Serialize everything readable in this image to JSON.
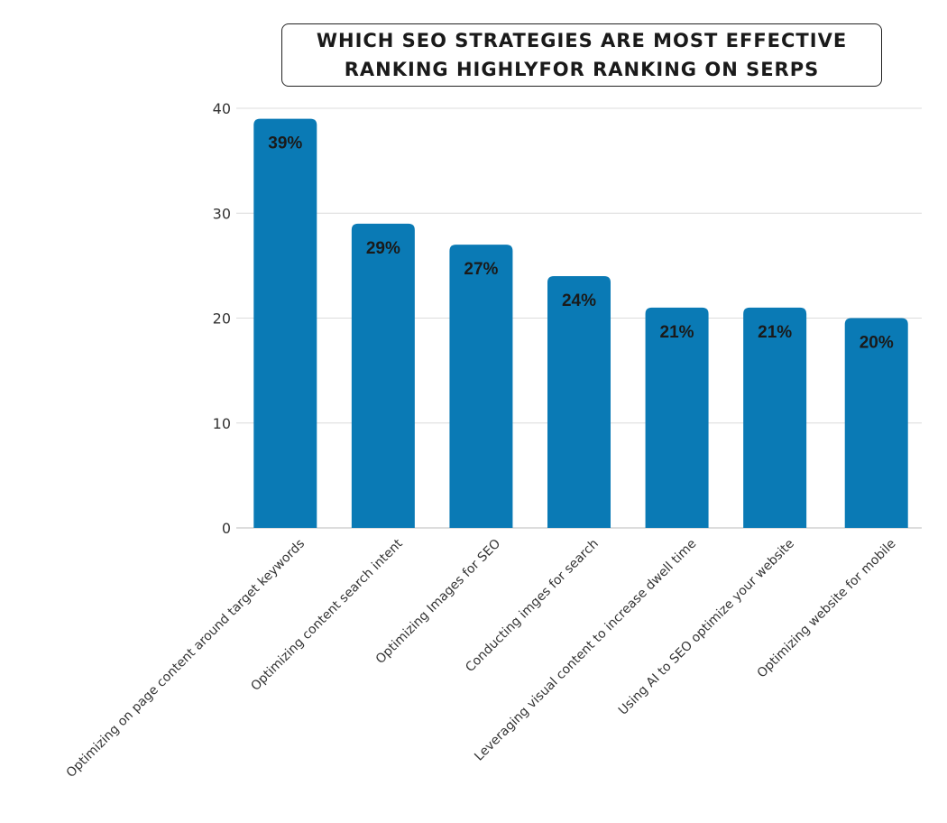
{
  "chart_data": {
    "type": "bar",
    "title_lines": [
      "WHICH SEO STRATEGIES ARE MOST EFFECTIVE",
      "RANKING HIGHLYFOR RANKING ON SERPS"
    ],
    "categories": [
      "Optimizing on page content around target keywords",
      "Optimizing content search intent",
      "Optimizing Images for SEO",
      "Conducting imges for search",
      "Leveraging visual content to increase dwell time",
      "Using AI to SEO optimize your website",
      "Optimizing website for mobile"
    ],
    "values": [
      39,
      29,
      27,
      24,
      21,
      21,
      20
    ],
    "data_labels": [
      "39%",
      "29%",
      "27%",
      "24%",
      "21%",
      "21%",
      "20%"
    ],
    "ylim": [
      0,
      40
    ],
    "yticks": [
      0,
      10,
      20,
      30,
      40
    ],
    "grid": true,
    "bar_color": "#0a7ab5",
    "grid_color": "#dcdcdc"
  }
}
